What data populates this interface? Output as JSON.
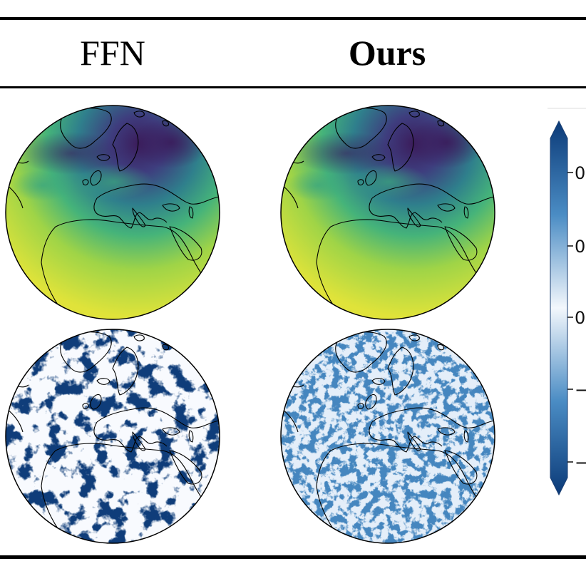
{
  "headers": {
    "col1": "FFN",
    "col2": "Ours"
  },
  "colorbar": {
    "tick_labels": [
      "0",
      "0",
      "0",
      "−",
      "−"
    ],
    "colormap": "Blues",
    "extend": "both"
  },
  "panels": [
    {
      "row": "field",
      "column": "FFN",
      "colormap": "viridis"
    },
    {
      "row": "field",
      "column": "Ours",
      "colormap": "viridis"
    },
    {
      "row": "error",
      "column": "FFN",
      "colormap": "Blues"
    },
    {
      "row": "error",
      "column": "Ours",
      "colormap": "Blues"
    }
  ],
  "colors": {
    "viridis_dark": "#3b2a6e",
    "viridis_mid": "#2f8f8a",
    "viridis_green": "#5fbf5a",
    "viridis_yellow": "#e3e63a",
    "blues_dark": "#0d3a78",
    "blues_light": "#eef4fb"
  }
}
